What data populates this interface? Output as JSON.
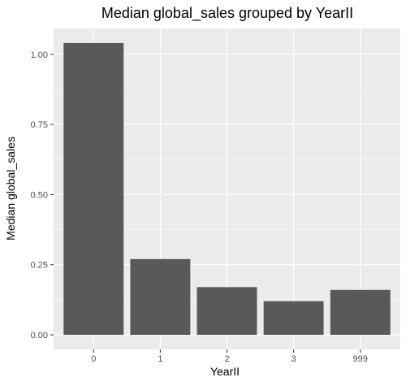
{
  "chart_data": {
    "type": "bar",
    "title": "Median global_sales grouped by YearII",
    "xlabel": "YearII",
    "ylabel": "Median global_sales",
    "categories": [
      "0",
      "1",
      "2",
      "3",
      "999"
    ],
    "values": [
      1.04,
      0.27,
      0.17,
      0.12,
      0.16
    ],
    "ylim": [
      -0.052,
      1.092
    ],
    "yticks": [
      0.0,
      0.25,
      0.5,
      0.75,
      1.0
    ],
    "ytick_labels": [
      "0.00",
      "0.25",
      "0.50",
      "0.75",
      "1.00"
    ],
    "grid": true,
    "colors": {
      "bar": "#595959",
      "panel": "#ebebeb",
      "grid_major": "#ffffff",
      "text": "#4d4d4d",
      "title": "#000000"
    }
  }
}
